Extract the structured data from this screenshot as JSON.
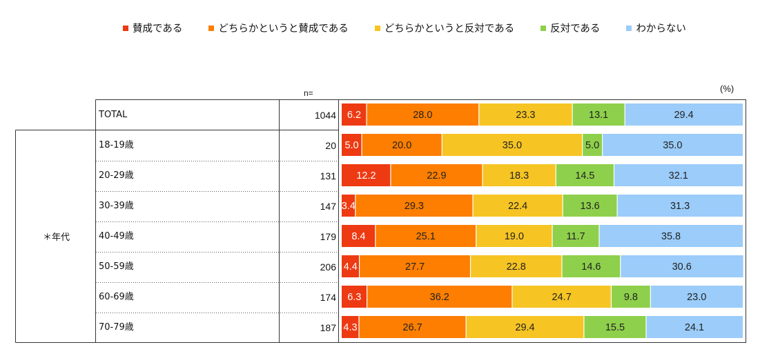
{
  "legend": [
    {
      "label": "賛成である",
      "color": "#ee3a12"
    },
    {
      "label": "どちらかというと賛成である",
      "color": "#fd7e00"
    },
    {
      "label": "どちらかというと反対である",
      "color": "#f6c423"
    },
    {
      "label": "反対である",
      "color": "#8ed04b"
    },
    {
      "label": "わからない",
      "color": "#9bccfa"
    }
  ],
  "header": {
    "n_label": "n=",
    "unit_label": "(%)"
  },
  "group_label": "＊年代",
  "chart_data": {
    "type": "bar",
    "orientation": "horizontal",
    "stacked": true,
    "xlim": [
      0,
      100
    ],
    "unit": "%",
    "categories": [
      "TOTAL",
      "18-19歳",
      "20-29歳",
      "30-39歳",
      "40-49歳",
      "50-59歳",
      "60-69歳",
      "70-79歳"
    ],
    "n": [
      1044,
      20,
      131,
      147,
      179,
      206,
      174,
      187
    ],
    "n_text": [
      "1044",
      "20",
      "131",
      "147",
      "179",
      "206",
      "174",
      "187"
    ],
    "series": [
      {
        "name": "賛成である",
        "color": "#ee3a12",
        "values": [
          6.2,
          5.0,
          12.2,
          3.4,
          8.4,
          4.4,
          6.3,
          4.3
        ],
        "labels": [
          "6.2",
          "5.0",
          "12.2",
          "3.4",
          "8.4",
          "4.4",
          "6.3",
          "4.3"
        ]
      },
      {
        "name": "どちらかというと賛成である",
        "color": "#fd7e00",
        "values": [
          28.0,
          20.0,
          22.9,
          29.3,
          25.1,
          27.7,
          36.2,
          26.7
        ],
        "labels": [
          "28.0",
          "20.0",
          "22.9",
          "29.3",
          "25.1",
          "27.7",
          "36.2",
          "26.7"
        ]
      },
      {
        "name": "どちらかというと反対である",
        "color": "#f6c423",
        "values": [
          23.3,
          35.0,
          18.3,
          22.4,
          19.0,
          22.8,
          24.7,
          29.4
        ],
        "labels": [
          "23.3",
          "35.0",
          "18.3",
          "22.4",
          "19.0",
          "22.8",
          "24.7",
          "29.4"
        ]
      },
      {
        "name": "反対である",
        "color": "#8ed04b",
        "values": [
          13.1,
          5.0,
          14.5,
          13.6,
          11.7,
          14.6,
          9.8,
          15.5
        ],
        "labels": [
          "13.1",
          "5.0",
          "14.5",
          "13.6",
          "11.7",
          "14.6",
          "9.8",
          "15.5"
        ]
      },
      {
        "name": "わからない",
        "color": "#9bccfa",
        "values": [
          29.4,
          35.0,
          32.1,
          31.3,
          35.8,
          30.6,
          23.0,
          24.1
        ],
        "labels": [
          "29.4",
          "35.0",
          "32.1",
          "31.3",
          "35.8",
          "30.6",
          "23.0",
          "24.1"
        ]
      }
    ]
  }
}
